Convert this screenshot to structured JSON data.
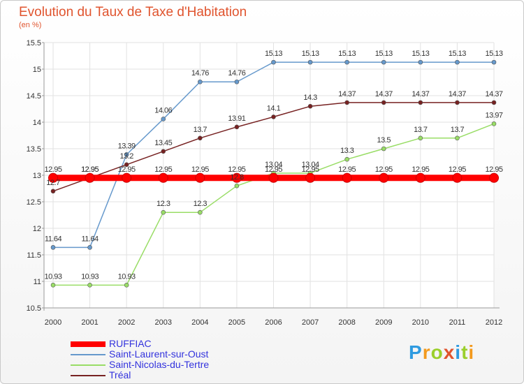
{
  "title": "Evolution du Taux de Taxe d'Habitation",
  "subtitle": "(en %)",
  "logo": {
    "text": "Proxiti",
    "letters": [
      "P",
      "r",
      "o",
      "x",
      "i",
      "t",
      "i"
    ],
    "colors": [
      "#2f9be0",
      "#f39a1e",
      "#9bcf2c",
      "#e0542e",
      "#2f9be0",
      "#9bcf2c",
      "#f39a1e"
    ]
  },
  "chart_data": {
    "type": "line",
    "categories": [
      "2000",
      "2001",
      "2002",
      "2003",
      "2004",
      "2005",
      "2006",
      "2007",
      "2008",
      "2009",
      "2010",
      "2011",
      "2012"
    ],
    "ylim": [
      10.5,
      15.5
    ],
    "yticks": [
      "10.5",
      "11",
      "11.5",
      "12",
      "12.5",
      "13",
      "13.5",
      "14",
      "14.5",
      "15",
      "15.5"
    ],
    "grid": true,
    "legend_position": "bottom-left",
    "series": [
      {
        "name": "RUFFIAC",
        "color": "#ff0000",
        "thick": true,
        "values": [
          12.95,
          12.95,
          12.95,
          12.95,
          12.95,
          12.95,
          12.95,
          12.95,
          12.95,
          12.95,
          12.95,
          12.95,
          12.95
        ],
        "labels": [
          "12.95",
          "12.95",
          "12.95",
          "12.95",
          "12.95",
          "12.95",
          "12.95",
          "12.95",
          "12.95",
          "12.95",
          "12.95",
          "12.95",
          "12.95"
        ]
      },
      {
        "name": "Saint-Laurent-sur-Oust",
        "color": "#6699cc",
        "thick": false,
        "values": [
          11.64,
          11.64,
          13.39,
          14.06,
          14.76,
          14.76,
          15.13,
          15.13,
          15.13,
          15.13,
          15.13,
          15.13,
          15.13
        ],
        "labels": [
          "11.64",
          "11.64",
          "13.39",
          "14.06",
          "14.76",
          "14.76",
          "15.13",
          "15.13",
          "15.13",
          "15.13",
          "15.13",
          "15.13",
          "15.13"
        ]
      },
      {
        "name": "Saint-Nicolas-du-Tertre",
        "color": "#99dd66",
        "thick": false,
        "values": [
          10.93,
          10.93,
          10.93,
          12.3,
          12.3,
          12.8,
          13.04,
          13.04,
          13.3,
          13.5,
          13.7,
          13.7,
          13.97
        ],
        "labels": [
          "10.93",
          "10.93",
          "10.93",
          "12.3",
          "12.3",
          "12.8",
          "13.04",
          "13.04",
          "13.3",
          "13.5",
          "13.7",
          "13.7",
          "13.97"
        ]
      },
      {
        "name": "Tréal",
        "color": "#772222",
        "thick": false,
        "values": [
          12.7,
          12.95,
          13.2,
          13.45,
          13.7,
          13.91,
          14.1,
          14.3,
          14.37,
          14.37,
          14.37,
          14.37,
          14.37
        ],
        "labels": [
          "12.7",
          "12.95",
          "13.2",
          "13.45",
          "13.7",
          "13.91",
          "14.1",
          "14.3",
          "14.37",
          "14.37",
          "14.37",
          "14.37",
          "14.37"
        ]
      }
    ]
  }
}
